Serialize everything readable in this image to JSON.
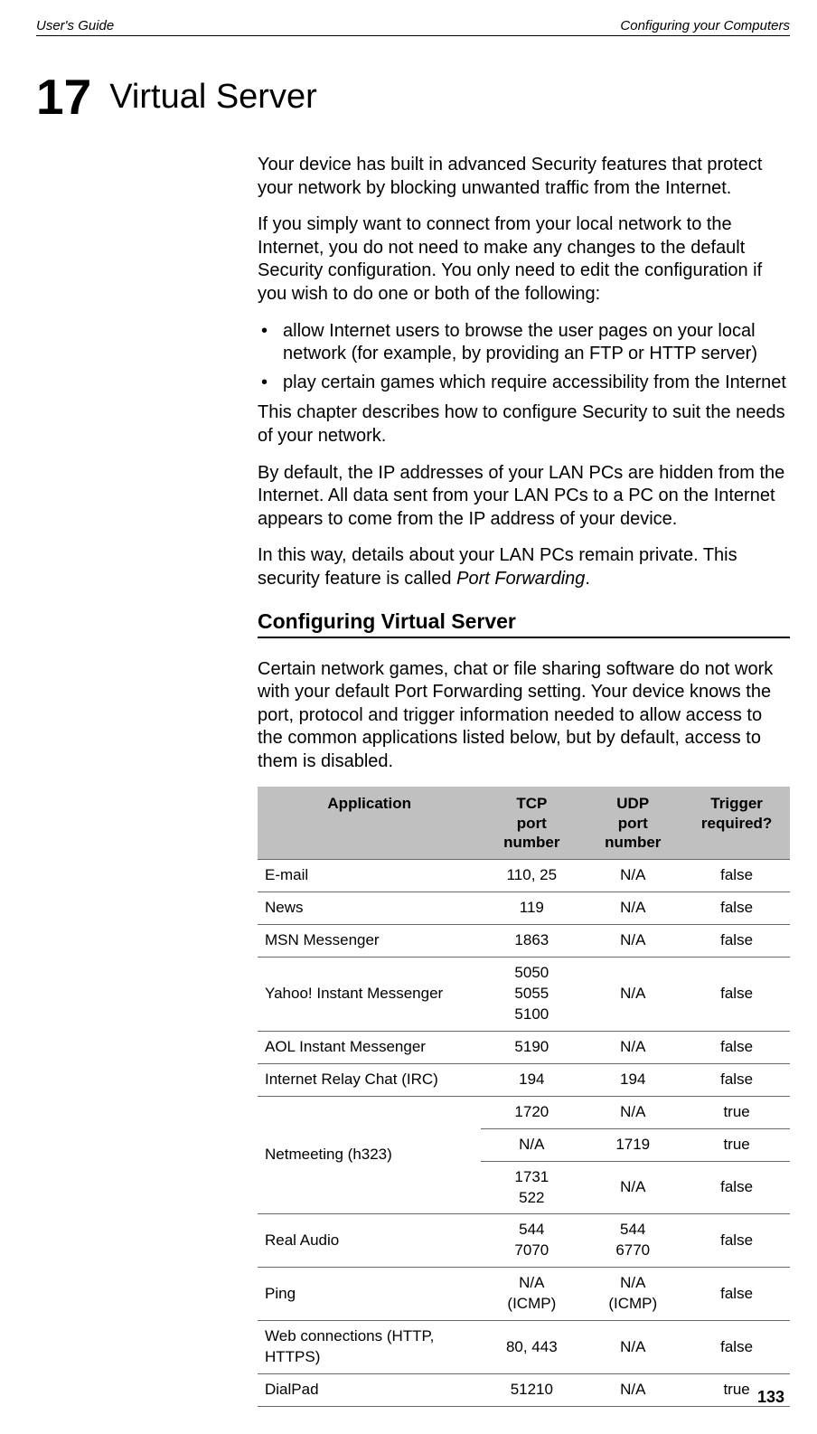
{
  "header": {
    "left": "User's Guide",
    "right": "Configuring your Computers"
  },
  "chapter": {
    "number": "17",
    "title": "Virtual Server"
  },
  "paragraphs": {
    "p1": "Your device has built in advanced Security features that protect your network by blocking unwanted traffic from the Internet.",
    "p2": "If you simply want to connect from your local network to the Internet, you do not need to make any changes to the default Security configuration. You only need to edit the configuration if you wish to do one or both of the following:",
    "p3": "This chapter describes how to configure Security to suit the needs of your network.",
    "p4": "By default, the IP addresses of your LAN PCs are hidden from the Internet. All data sent from your LAN PCs to a PC on the Internet appears to come from the IP address of your device.",
    "p5_prefix": "In this way, details about your LAN PCs remain private. This security feature is called ",
    "p5_italic": "Port Forwarding",
    "p5_suffix": ".",
    "p6": "Certain network games, chat or file sharing software do not work with your default Port Forwarding setting. Your device knows the port, protocol and trigger information needed to allow access to the common applications listed below, but by default, access to them is disabled."
  },
  "bullets": {
    "b1": "allow Internet users to browse the user pages on your local network (for example, by providing an FTP or HTTP server)",
    "b2": "play certain games which require accessibility from the Internet"
  },
  "section_heading": "Configuring Virtual Server",
  "table": {
    "headers": {
      "app": "Application",
      "tcp": "TCP port number",
      "udp": "UDP port number",
      "trigger": "Trigger required?"
    },
    "header_colors": {
      "bg": "#c0c0c0"
    },
    "rows": [
      {
        "application": "E-mail",
        "tcp": "110, 25",
        "udp": "N/A",
        "trigger": "false",
        "rowspan": 1
      },
      {
        "application": "News",
        "tcp": "119",
        "udp": "N/A",
        "trigger": "false",
        "rowspan": 1
      },
      {
        "application": "MSN Messenger",
        "tcp": "1863",
        "udp": "N/A",
        "trigger": "false",
        "rowspan": 1
      },
      {
        "application": "Yahoo! Instant Messenger",
        "tcp": "5050\n5055\n5100",
        "udp": "N/A",
        "trigger": "false",
        "rowspan": 1
      },
      {
        "application": "AOL Instant Messenger",
        "tcp": "5190",
        "udp": "N/A",
        "trigger": "false",
        "rowspan": 1
      },
      {
        "application": "Internet Relay Chat (IRC)",
        "tcp": "194",
        "udp": "194",
        "trigger": "false",
        "rowspan": 1
      },
      {
        "application": "Netmeeting (h323)",
        "tcp": "1720",
        "udp": "N/A",
        "trigger": "true",
        "rowspan": 3
      },
      {
        "application": "",
        "tcp": "N/A",
        "udp": "1719",
        "trigger": "true",
        "rowspan": 0
      },
      {
        "application": "",
        "tcp": "1731\n522",
        "udp": "N/A",
        "trigger": "false",
        "rowspan": 0
      },
      {
        "application": "Real Audio",
        "tcp": "544\n7070",
        "udp": "544\n6770",
        "trigger": "false",
        "rowspan": 1
      },
      {
        "application": "Ping",
        "tcp": "N/A\n(ICMP)",
        "udp": "N/A\n(ICMP)",
        "trigger": "false",
        "rowspan": 1
      },
      {
        "application": "Web connections (HTTP, HTTPS)",
        "tcp": "80, 443",
        "udp": "N/A",
        "trigger": "false",
        "rowspan": 1
      },
      {
        "application": "DialPad",
        "tcp": "51210",
        "udp": "N/A",
        "trigger": "true",
        "rowspan": 1
      }
    ]
  },
  "page_number": "133"
}
